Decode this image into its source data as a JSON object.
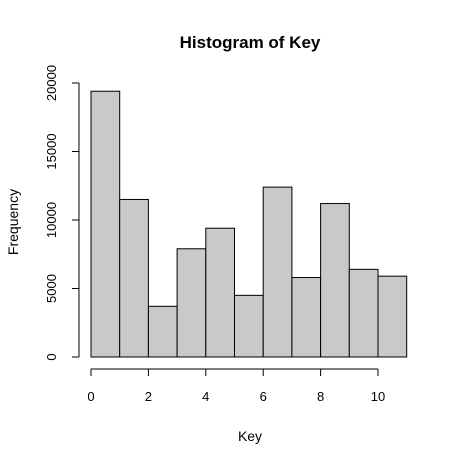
{
  "chart_data": {
    "type": "bar",
    "title": "Histogram of Key",
    "xlabel": "Key",
    "ylabel": "Frequency",
    "bins": [
      {
        "start": 0,
        "end": 1,
        "count": 19400
      },
      {
        "start": 1,
        "end": 2,
        "count": 11500
      },
      {
        "start": 2,
        "end": 3,
        "count": 3700
      },
      {
        "start": 3,
        "end": 4,
        "count": 7900
      },
      {
        "start": 4,
        "end": 5,
        "count": 9400
      },
      {
        "start": 5,
        "end": 6,
        "count": 4500
      },
      {
        "start": 6,
        "end": 7,
        "count": 12400
      },
      {
        "start": 7,
        "end": 8,
        "count": 5800
      },
      {
        "start": 8,
        "end": 9,
        "count": 11200
      },
      {
        "start": 9,
        "end": 10,
        "count": 6400
      },
      {
        "start": 10,
        "end": 11,
        "count": 5900
      }
    ],
    "xlim": [
      0,
      11
    ],
    "ylim": [
      0,
      20000
    ],
    "x_ticks": [
      0,
      2,
      4,
      6,
      8,
      10
    ],
    "y_ticks": [
      0,
      5000,
      10000,
      15000,
      20000
    ],
    "grid": false,
    "bar_color": "#c9c9c9",
    "edge_color": "#000000"
  }
}
